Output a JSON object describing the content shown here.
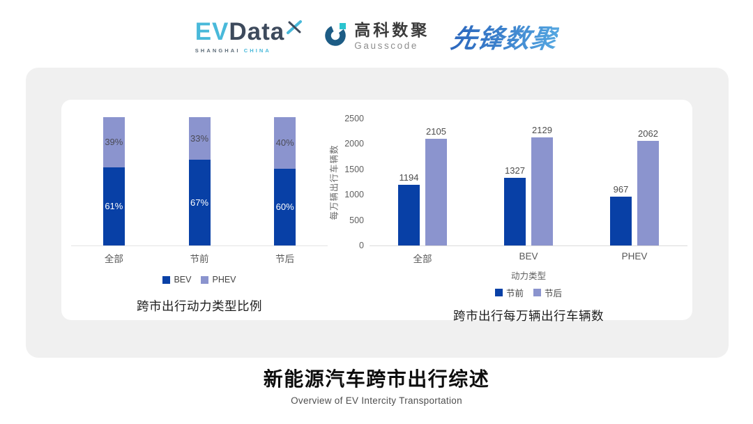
{
  "header": {
    "evdata": {
      "ev": "EV",
      "data": "Data",
      "sub_left": "SHANGHAI",
      "sub_right": "CHINA"
    },
    "gausscode": {
      "cn": "高科数聚",
      "en": "Gausscode"
    },
    "pioneer": "先锋数聚"
  },
  "footer": {
    "title": "新能源汽车跨市出行综述",
    "subtitle": "Overview of EV Intercity Transportation"
  },
  "colors": {
    "bev_dark_blue": "#0840a6",
    "phev_periwinkle": "#8b94ce",
    "card_gray": "#f0f0f0",
    "logo_cyan": "#49b9da",
    "logo_slate": "#3d4a5c"
  },
  "chart_data": [
    {
      "type": "bar",
      "variant": "stacked-100",
      "title": "跨市出行动力类型比例",
      "categories": [
        "全部",
        "节前",
        "节后"
      ],
      "series": [
        {
          "name": "BEV",
          "values": [
            61,
            67,
            60
          ],
          "color": "#0840a6",
          "label_color": "#ffffff"
        },
        {
          "name": "PHEV",
          "values": [
            39,
            33,
            40
          ],
          "color": "#8b94ce",
          "label_color": "#4a4a55"
        }
      ],
      "unit": "%",
      "ylim": [
        0,
        100
      ],
      "grid": false,
      "legend_position": "bottom"
    },
    {
      "type": "bar",
      "variant": "grouped",
      "title": "跨市出行每万辆出行车辆数",
      "categories": [
        "全部",
        "BEV",
        "PHEV"
      ],
      "xlabel": "动力类型",
      "ylabel": "每万辆出行车辆数",
      "yticks": [
        0,
        500,
        1000,
        1500,
        2000,
        2500
      ],
      "ylim": [
        0,
        2500
      ],
      "series": [
        {
          "name": "节前",
          "values": [
            1194,
            1327,
            967
          ],
          "color": "#0840a6"
        },
        {
          "name": "节后",
          "values": [
            2105,
            2129,
            2062
          ],
          "color": "#8b94ce"
        }
      ],
      "grid": false,
      "legend_position": "bottom"
    }
  ]
}
